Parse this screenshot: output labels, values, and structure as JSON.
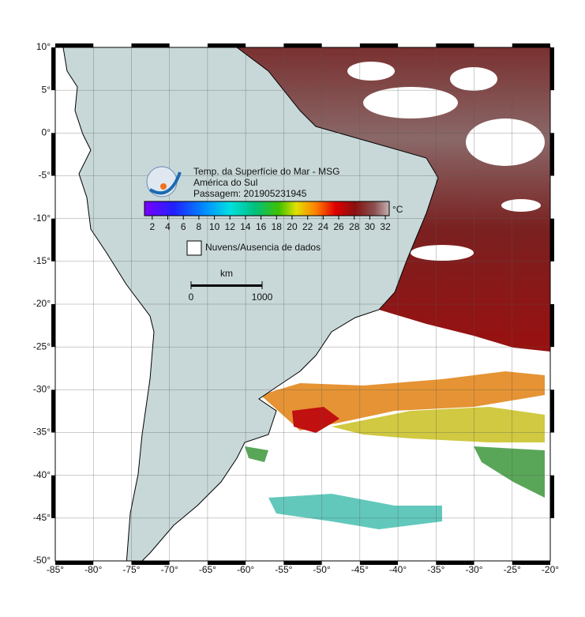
{
  "header": {
    "title": "Temp. da Superfície do Mar - MSG",
    "region": "América do Sul",
    "pass": "Passagem: 201905231945"
  },
  "colorbar": {
    "unit": "°C",
    "range": [
      1,
      32.5
    ],
    "ticks": [
      2,
      4,
      6,
      8,
      10,
      12,
      14,
      16,
      18,
      20,
      22,
      24,
      26,
      28,
      30,
      32
    ]
  },
  "legend": {
    "label": "Nuvens/Ausencia de dados"
  },
  "scale_bar": {
    "unit": "km",
    "ticks": [
      0,
      1000
    ]
  },
  "map": {
    "lon_range": [
      -85,
      -20
    ],
    "lat_range": [
      -50,
      10
    ],
    "lon_ticks": [
      {
        "value": -85,
        "label": "-85°"
      },
      {
        "value": -80,
        "label": "-80°"
      },
      {
        "value": -75,
        "label": "-75°"
      },
      {
        "value": -70,
        "label": "-70°"
      },
      {
        "value": -65,
        "label": "-65°"
      },
      {
        "value": -60,
        "label": "-60°"
      },
      {
        "value": -55,
        "label": "-55°"
      },
      {
        "value": -50,
        "label": "-50°"
      },
      {
        "value": -45,
        "label": "-45°"
      },
      {
        "value": -40,
        "label": "-40°"
      },
      {
        "value": -35,
        "label": "-35°"
      },
      {
        "value": -30,
        "label": "-30°"
      },
      {
        "value": -25,
        "label": "-25°"
      },
      {
        "value": -20,
        "label": "-20°"
      }
    ],
    "lat_ticks": [
      {
        "value": 10,
        "label": "10°"
      },
      {
        "value": 5,
        "label": "5°"
      },
      {
        "value": 0,
        "label": "0°"
      },
      {
        "value": -5,
        "label": "-5°"
      },
      {
        "value": -10,
        "label": "-10°"
      },
      {
        "value": -15,
        "label": "-15°"
      },
      {
        "value": -20,
        "label": "-20°"
      },
      {
        "value": -25,
        "label": "-25°"
      },
      {
        "value": -30,
        "label": "-30°"
      },
      {
        "value": -35,
        "label": "-35°"
      },
      {
        "value": -40,
        "label": "-40°"
      },
      {
        "value": -45,
        "label": "-45°"
      },
      {
        "value": -50,
        "label": "-50°"
      }
    ]
  }
}
